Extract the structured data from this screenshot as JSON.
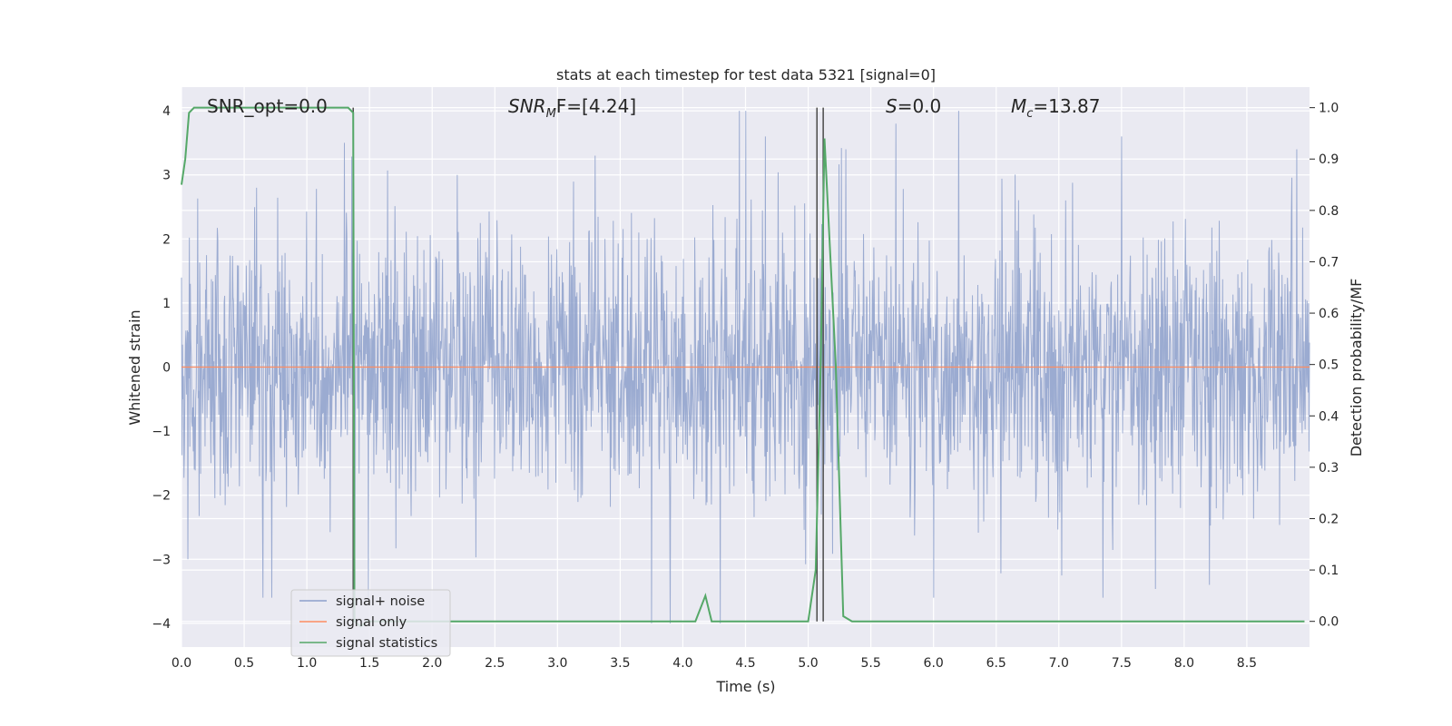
{
  "chart_data": {
    "type": "line",
    "title": "stats at each timestep for test data 5321 [signal=0]",
    "xlabel": "Time (s)",
    "ylabel_left": "Whitened strain",
    "ylabel_right": "Detection probability/MF",
    "xlim": [
      0.0,
      9.0
    ],
    "ylim_left": [
      -4.37,
      4.37
    ],
    "ylim_right": [
      -0.05,
      1.04
    ],
    "x_ticks": [
      "0.0",
      "0.5",
      "1.0",
      "1.5",
      "2.0",
      "2.5",
      "3.0",
      "3.5",
      "4.0",
      "4.5",
      "5.0",
      "5.5",
      "6.0",
      "6.5",
      "7.0",
      "7.5",
      "8.0",
      "8.5"
    ],
    "y_ticks_left": [
      "−4",
      "−3",
      "−2",
      "−1",
      "0",
      "1",
      "2",
      "3",
      "4"
    ],
    "y_ticks_right": [
      "0.0",
      "0.1",
      "0.2",
      "0.3",
      "0.4",
      "0.5",
      "0.6",
      "0.7",
      "0.8",
      "0.9",
      "1.0"
    ],
    "grid": true,
    "legend_position": "lower-left",
    "annotations": {
      "snr_opt": "SNR_opt=0.0",
      "snr_mf_base": "SNR",
      "snr_mf_sub": "M",
      "snr_mf_rest": "F=[4.24]",
      "s_italic": "S",
      "s_rest": "=0.0",
      "mc_base": "M",
      "mc_sub": "c",
      "mc_rest": "=13.87"
    },
    "series": [
      {
        "name": "signal+ noise",
        "color": "#8da0cb",
        "axis": "left",
        "envelope_description": "whitened noise, roughly |y| up to ~4",
        "peaks_upper": [
          [
            0.05,
            3.2
          ],
          [
            0.6,
            2.8
          ],
          [
            1.3,
            3.5
          ],
          [
            1.37,
            3.8
          ],
          [
            2.2,
            3.0
          ],
          [
            3.3,
            3.3
          ],
          [
            4.45,
            4.0
          ],
          [
            4.5,
            4.0
          ],
          [
            5.3,
            3.4
          ],
          [
            5.7,
            3.8
          ],
          [
            6.2,
            4.0
          ],
          [
            7.5,
            3.6
          ],
          [
            8.9,
            3.4
          ]
        ],
        "peaks_lower": [
          [
            0.05,
            -3.0
          ],
          [
            0.65,
            -3.6
          ],
          [
            0.72,
            -3.6
          ],
          [
            3.75,
            -4.0
          ],
          [
            3.9,
            -4.0
          ],
          [
            4.3,
            -4.0
          ],
          [
            6.0,
            -3.6
          ],
          [
            7.35,
            -3.6
          ],
          [
            8.2,
            -3.4
          ]
        ]
      },
      {
        "name": "signal only",
        "color": "#fc8d62",
        "axis": "left",
        "x": [
          0.0,
          9.0
        ],
        "y": [
          0.0,
          0.0
        ]
      },
      {
        "name": "signal statistics",
        "color": "#55a868",
        "axis": "right",
        "x": [
          0.0,
          0.03,
          0.06,
          0.1,
          1.33,
          1.37,
          1.38,
          1.43,
          1.48,
          4.1,
          4.18,
          4.23,
          4.3,
          5.0,
          5.06,
          5.1,
          5.13,
          5.22,
          5.28,
          5.35,
          8.96
        ],
        "y": [
          0.85,
          0.9,
          0.99,
          1.0,
          1.0,
          0.99,
          0.0,
          -0.01,
          0.0,
          0.0,
          0.05,
          0.0,
          0.0,
          0.0,
          0.1,
          0.5,
          0.94,
          0.5,
          0.01,
          0.0,
          0.0
        ]
      }
    ],
    "vertical_lines": [
      1.37,
      5.07,
      5.12
    ]
  }
}
